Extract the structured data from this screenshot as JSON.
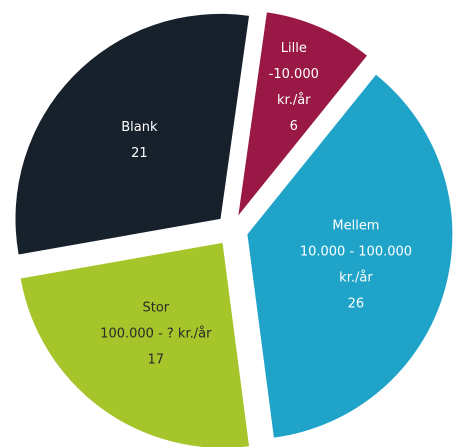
{
  "chart_data": {
    "type": "pie",
    "categories": [
      [
        "Lille",
        "-10.000",
        "kr./år"
      ],
      [
        "Mellem",
        "10.000 - 100.000",
        "kr./år"
      ],
      [
        "Stor",
        "100.000 - ? kr./år"
      ],
      [
        "Blank"
      ]
    ],
    "values": [
      6,
      26,
      17,
      21
    ],
    "colors": [
      "#9a1845",
      "#1fa3c9",
      "#a5c52b",
      "#17212c"
    ],
    "label_colors": [
      "#ffffff",
      "#ffffff",
      "#2a2a2a",
      "#ffffff"
    ]
  }
}
